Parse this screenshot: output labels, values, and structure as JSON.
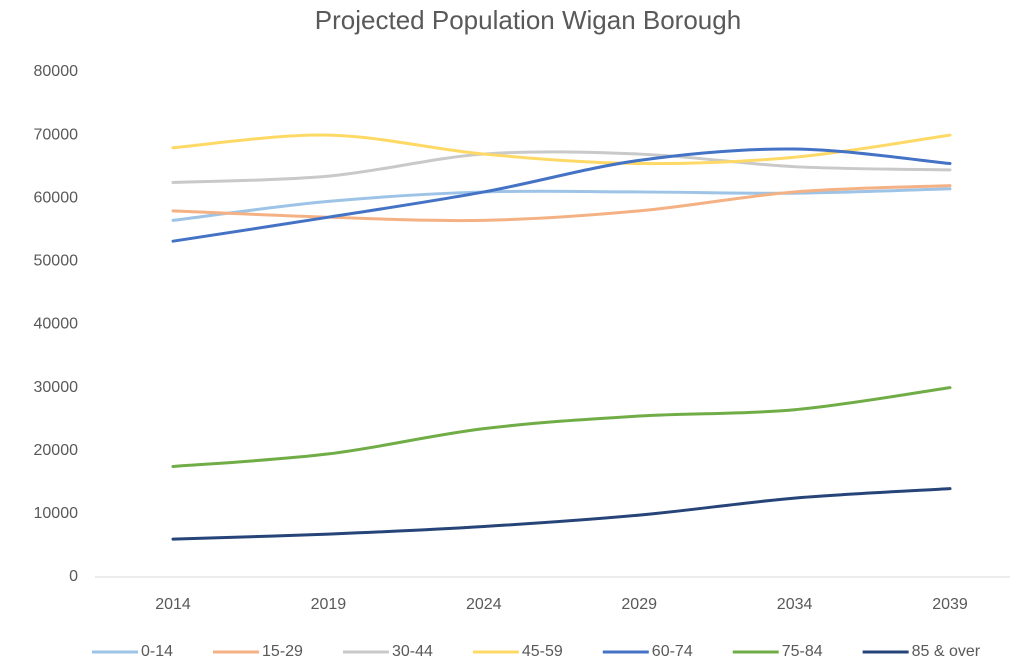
{
  "chart_data": {
    "type": "line",
    "title": "Projected Population Wigan Borough",
    "categories": [
      "2014",
      "2019",
      "2024",
      "2029",
      "2034",
      "2039"
    ],
    "ylim": [
      0,
      80000
    ],
    "yticks": [
      0,
      10000,
      20000,
      30000,
      40000,
      50000,
      60000,
      70000,
      80000
    ],
    "legend": "bottom",
    "series": [
      {
        "name": "0-14",
        "color": "#9dc3e6",
        "values": [
          56500,
          59500,
          61000,
          61000,
          60800,
          61500
        ]
      },
      {
        "name": "15-29",
        "color": "#f4b183",
        "values": [
          58000,
          57000,
          56500,
          58000,
          61000,
          62000
        ]
      },
      {
        "name": "30-44",
        "color": "#c9c9c9",
        "values": [
          62500,
          63500,
          67000,
          67000,
          65000,
          64500
        ]
      },
      {
        "name": "45-59",
        "color": "#ffd966",
        "values": [
          68000,
          70000,
          67000,
          65500,
          66500,
          70000
        ]
      },
      {
        "name": "60-74",
        "color": "#4472c4",
        "values": [
          53200,
          57000,
          61000,
          66000,
          67800,
          65500
        ]
      },
      {
        "name": "75-84",
        "color": "#70ad47",
        "values": [
          17500,
          19500,
          23500,
          25500,
          26500,
          30000
        ]
      },
      {
        "name": "85 & over",
        "color": "#264478",
        "values": [
          6000,
          6800,
          8000,
          9800,
          12500,
          14000
        ]
      }
    ]
  }
}
